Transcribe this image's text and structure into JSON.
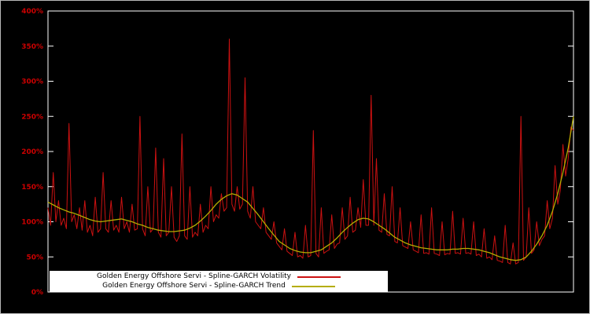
{
  "chart": {
    "background": "#000000",
    "axis_color": "#ffffff",
    "tick_label_color": "#cc0000",
    "legend": {
      "background": "#ffffff",
      "text_color": "#000000"
    }
  },
  "chart_data": {
    "type": "line",
    "title": "",
    "xlabel": "",
    "ylabel": "",
    "grid": false,
    "legend_position": "bottom-left",
    "ylim": [
      0,
      400
    ],
    "x_range": [
      0,
      100
    ],
    "y_ticks": [
      {
        "label": "0%",
        "value": 0
      },
      {
        "label": "50%",
        "value": 50
      },
      {
        "label": "100%",
        "value": 100
      },
      {
        "label": "150%",
        "value": 150
      },
      {
        "label": "200%",
        "value": 200
      },
      {
        "label": "250%",
        "value": 250
      },
      {
        "label": "300%",
        "value": 300
      },
      {
        "label": "350%",
        "value": 350
      },
      {
        "label": "400%",
        "value": 400
      }
    ],
    "series": [
      {
        "name": "Golden Energy Offshore Servi - Spline-GARCH Volatility",
        "color": "#cc1111",
        "x_start": 0,
        "x_step": 0.5,
        "values": [
          120,
          95,
          170,
          100,
          130,
          95,
          105,
          90,
          240,
          100,
          110,
          90,
          120,
          88,
          130,
          85,
          95,
          80,
          135,
          85,
          90,
          170,
          90,
          85,
          130,
          88,
          95,
          85,
          135,
          90,
          100,
          85,
          125,
          88,
          90,
          250,
          90,
          80,
          150,
          85,
          90,
          205,
          85,
          78,
          190,
          80,
          85,
          150,
          78,
          72,
          80,
          225,
          80,
          75,
          150,
          78,
          85,
          80,
          125,
          85,
          95,
          90,
          150,
          100,
          110,
          105,
          140,
          115,
          120,
          360,
          125,
          115,
          150,
          118,
          125,
          305,
          115,
          105,
          150,
          100,
          95,
          90,
          120,
          85,
          80,
          75,
          100,
          70,
          65,
          60,
          90,
          58,
          55,
          52,
          85,
          50,
          52,
          48,
          95,
          50,
          52,
          230,
          55,
          50,
          120,
          55,
          58,
          60,
          110,
          62,
          68,
          70,
          120,
          75,
          80,
          135,
          85,
          88,
          120,
          92,
          160,
          95,
          95,
          280,
          95,
          190,
          88,
          85,
          140,
          82,
          80,
          150,
          72,
          70,
          120,
          66,
          64,
          62,
          100,
          60,
          58,
          56,
          110,
          55,
          56,
          54,
          120,
          55,
          54,
          52,
          100,
          53,
          55,
          54,
          115,
          55,
          56,
          54,
          105,
          55,
          56,
          54,
          100,
          52,
          54,
          50,
          90,
          48,
          50,
          46,
          80,
          45,
          44,
          42,
          95,
          42,
          40,
          70,
          40,
          42,
          250,
          45,
          50,
          120,
          55,
          60,
          100,
          66,
          75,
          80,
          130,
          90,
          105,
          180,
          125,
          145,
          210,
          165,
          190,
          235,
          230
        ]
      },
      {
        "name": "Golden Energy Offshore Servi - Spline-GARCH Trend",
        "color": "#b5ad00",
        "x_start": 0,
        "x_step": 1,
        "values": [
          128,
          124,
          120,
          117,
          114,
          112,
          109,
          106,
          103,
          101,
          100,
          101,
          102,
          103,
          104,
          102,
          100,
          97,
          95,
          92,
          90,
          88,
          87,
          86,
          86,
          87,
          88,
          91,
          95,
          101,
          108,
          116,
          125,
          132,
          137,
          140,
          138,
          133,
          128,
          119,
          110,
          100,
          90,
          81,
          72,
          67,
          62,
          59,
          57,
          56,
          56,
          58,
          60,
          65,
          70,
          77,
          85,
          92,
          98,
          103,
          105,
          104,
          100,
          95,
          90,
          84,
          78,
          74,
          70,
          67,
          65,
          63,
          62,
          61,
          60,
          60,
          60,
          61,
          61,
          62,
          62,
          61,
          60,
          58,
          56,
          53,
          50,
          48,
          46,
          45,
          46,
          50,
          58,
          68,
          80,
          95,
          115,
          140,
          170,
          205,
          250
        ]
      }
    ]
  }
}
